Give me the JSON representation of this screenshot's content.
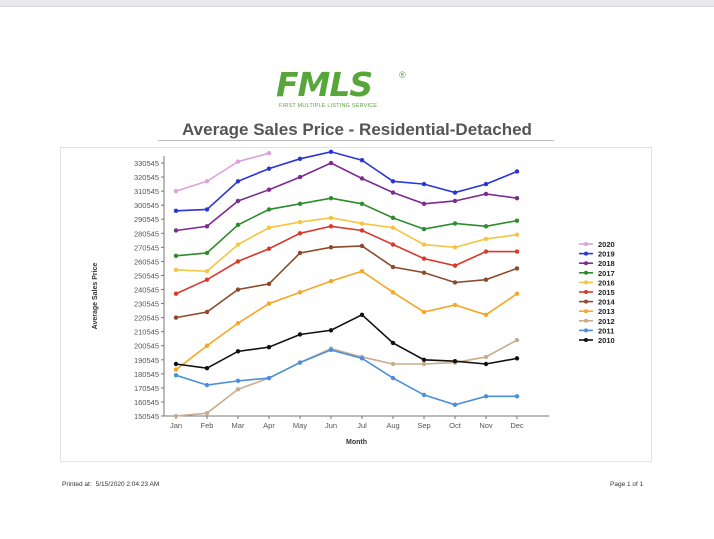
{
  "logo": {
    "text": "FMLS",
    "reg": "®",
    "subtitle": "FIRST MULTIPLE LISTING SERVICE",
    "color": "#57a63a"
  },
  "footer": {
    "printed_label": "Printed at:",
    "printed_value": "5/15/2020 2:04:23 AM",
    "page": "Page 1 of 1"
  },
  "chart_data": {
    "type": "line",
    "title": "Average Sales Price - Residential-Detached",
    "xlabel": "Month",
    "ylabel": "Average Sales Price",
    "categories": [
      "Jan",
      "Feb",
      "Mar",
      "Apr",
      "May",
      "Jun",
      "Jul",
      "Aug",
      "Sep",
      "Oct",
      "Nov",
      "Dec"
    ],
    "yticks": [
      150545,
      160545,
      170545,
      180545,
      190545,
      200545,
      210545,
      220545,
      230545,
      240545,
      250545,
      260545,
      270545,
      280545,
      290545,
      300545,
      310545,
      320545,
      330545
    ],
    "ylim": [
      150545,
      335545
    ],
    "grid": false,
    "legend": "right",
    "series": [
      {
        "name": "2020",
        "color": "#dca2dc",
        "values": [
          310545,
          317545,
          331545,
          337545,
          null,
          null,
          null,
          null,
          null,
          null,
          null,
          null
        ]
      },
      {
        "name": "2019",
        "color": "#2a35d8",
        "values": [
          296545,
          297545,
          317545,
          326545,
          333545,
          338545,
          332545,
          317545,
          315545,
          309545,
          315545,
          324545
        ]
      },
      {
        "name": "2018",
        "color": "#7d2a91",
        "values": [
          282545,
          285545,
          303545,
          311545,
          320545,
          330545,
          319545,
          309545,
          301545,
          303545,
          308545,
          305545
        ]
      },
      {
        "name": "2017",
        "color": "#2e8b2e",
        "values": [
          264545,
          266545,
          286545,
          297545,
          301545,
          305545,
          301545,
          291545,
          283545,
          287545,
          285545,
          289545
        ]
      },
      {
        "name": "2016",
        "color": "#f5c542",
        "values": [
          254545,
          253545,
          272545,
          284545,
          288545,
          291545,
          287545,
          284545,
          272545,
          270545,
          276545,
          279545
        ]
      },
      {
        "name": "2015",
        "color": "#d9382c",
        "values": [
          237545,
          247545,
          260545,
          269545,
          280545,
          285545,
          282545,
          272545,
          262545,
          257545,
          267545,
          267545
        ]
      },
      {
        "name": "2014",
        "color": "#8b4a2b",
        "values": [
          220545,
          224545,
          240545,
          244545,
          266545,
          270545,
          271545,
          256545,
          252545,
          245545,
          247545,
          255545
        ]
      },
      {
        "name": "2013",
        "color": "#f5a623",
        "values": [
          183545,
          200545,
          216545,
          230545,
          238545,
          246545,
          253545,
          238545,
          224545,
          229545,
          222545,
          237545
        ]
      },
      {
        "name": "2012",
        "color": "#c8ad8d",
        "values": [
          150545,
          152545,
          169545,
          177545,
          188545,
          198545,
          192545,
          187545,
          187545,
          188545,
          192545,
          204545
        ]
      },
      {
        "name": "2011",
        "color": "#4a8fdb",
        "values": [
          179545,
          172545,
          175545,
          177545,
          188545,
          197545,
          191545,
          177545,
          165545,
          158545,
          164545,
          164545
        ]
      },
      {
        "name": "2010",
        "color": "#111111",
        "values": [
          187545,
          184545,
          196545,
          199545,
          208545,
          211545,
          222545,
          202545,
          190545,
          189545,
          187545,
          191545
        ]
      }
    ]
  }
}
